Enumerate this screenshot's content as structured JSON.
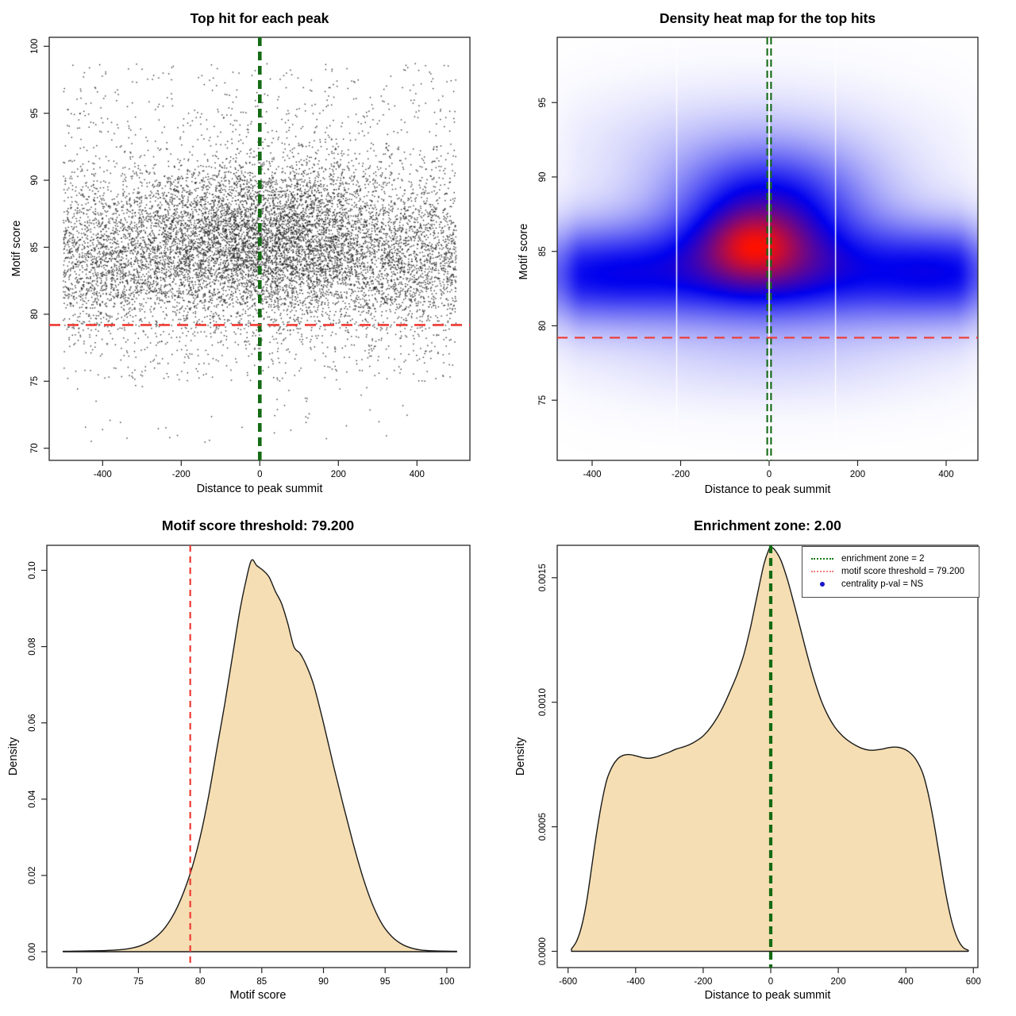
{
  "figure": {
    "background": "#ffffff",
    "box_color": "#262626",
    "text_color": "#000000"
  },
  "chart_data": [
    {
      "type": "scatter",
      "title": "Top hit for each peak",
      "xlabel": "Distance to peak summit",
      "ylabel": "Motif score",
      "xlim": [
        -535,
        535
      ],
      "ylim": [
        69.1,
        100.7
      ],
      "xticks": [
        {
          "v": -400,
          "label": "-400"
        },
        {
          "v": -200,
          "label": "-200"
        },
        {
          "v": 0,
          "label": "0"
        },
        {
          "v": 200,
          "label": "200"
        },
        {
          "v": 400,
          "label": "400"
        }
      ],
      "yticks": [
        {
          "v": 70,
          "label": "70"
        },
        {
          "v": 75,
          "label": "75"
        },
        {
          "v": 80,
          "label": "80"
        },
        {
          "v": 85,
          "label": "85"
        },
        {
          "v": 90,
          "label": "90"
        },
        {
          "v": 95,
          "label": "95"
        },
        {
          "v": 100,
          "label": "100"
        }
      ],
      "point_color": "#191919",
      "n_points": 11500,
      "seed": 42,
      "cloud_components": [
        {
          "w": 0.34,
          "x": {
            "dist": "uniform",
            "a": -500,
            "b": 500
          },
          "y": {
            "dist": "normal",
            "mu": 84.2,
            "sd": 2.4
          }
        },
        {
          "w": 0.19,
          "x": {
            "dist": "uniform",
            "a": -500,
            "b": 500
          },
          "y": {
            "dist": "normal",
            "mu": 87.6,
            "sd": 3.1
          }
        },
        {
          "w": 0.1,
          "x": {
            "dist": "uniform",
            "a": -500,
            "b": 500
          },
          "y": {
            "dist": "normal",
            "mu": 81.4,
            "sd": 1.9
          }
        },
        {
          "w": 0.22,
          "x": {
            "dist": "normal",
            "mu": 10,
            "sd": 150
          },
          "y": {
            "dist": "normal",
            "mu": 86.9,
            "sd": 2.6
          }
        },
        {
          "w": 0.09,
          "x": {
            "dist": "normal",
            "mu": -10,
            "sd": 230
          },
          "y": {
            "dist": "normal",
            "mu": 84.5,
            "sd": 2.2
          }
        },
        {
          "w": 0.025,
          "x": {
            "dist": "uniform",
            "a": -500,
            "b": 500
          },
          "y": {
            "dist": "uniform",
            "a": 75.0,
            "b": 79.3
          }
        },
        {
          "w": 0.02,
          "x": {
            "dist": "uniform",
            "a": -500,
            "b": 500
          },
          "y": {
            "dist": "uniform",
            "a": 93.5,
            "b": 98.7
          }
        },
        {
          "w": 0.003,
          "x": {
            "dist": "uniform",
            "a": -495,
            "b": 495
          },
          "y": {
            "dist": "uniform",
            "a": 70.3,
            "b": 75.2
          }
        }
      ],
      "reference_lines": [
        {
          "orient": "v",
          "at": 0,
          "color": "#146b14",
          "dash": "11 7",
          "width": 4.6
        },
        {
          "orient": "h",
          "at": 79.2,
          "color": "#ee3a33",
          "dash": "14 9",
          "width": 2.6
        }
      ]
    },
    {
      "type": "heatmap",
      "title": "Density heat map for the top hits",
      "xlabel": "Distance to peak summit",
      "ylabel": "Motif score",
      "xlim": [
        -479,
        472
      ],
      "ylim": [
        70.9,
        99.3
      ],
      "xticks": [
        {
          "v": -400,
          "label": "-400"
        },
        {
          "v": -200,
          "label": "-200"
        },
        {
          "v": 0,
          "label": "0"
        },
        {
          "v": 200,
          "label": "200"
        },
        {
          "v": 400,
          "label": "400"
        }
      ],
      "yticks": [
        {
          "v": 75,
          "label": "75"
        },
        {
          "v": 80,
          "label": "80"
        },
        {
          "v": 85,
          "label": "85"
        },
        {
          "v": 90,
          "label": "90"
        },
        {
          "v": 95,
          "label": "95"
        }
      ],
      "color_ramp": [
        "#ffffff",
        "#0000ee",
        "#ff1000"
      ],
      "density_blobs": [
        {
          "amp": 0.55,
          "x0": 0,
          "sx": 99999,
          "y0": 83.4,
          "sy": 2.4
        },
        {
          "amp": 0.62,
          "x0": -10,
          "sx": 135,
          "y0": 86.3,
          "sy": 2.9
        },
        {
          "amp": 0.42,
          "x0": -40,
          "sx": 70,
          "y0": 85.4,
          "sy": 1.5
        },
        {
          "amp": 0.25,
          "x0": 5,
          "sx": 160,
          "y0": 89.3,
          "sy": 2.2
        },
        {
          "amp": 0.2,
          "x0": 380,
          "sx": 110,
          "y0": 83.8,
          "sy": 2.0
        },
        {
          "amp": 0.18,
          "x0": -370,
          "sx": 120,
          "y0": 83.5,
          "sy": 2.0
        },
        {
          "amp": 0.1,
          "x0": -80,
          "sx": 260,
          "y0": 92.5,
          "sy": 2.5
        },
        {
          "amp": 0.08,
          "x0": 0,
          "sx": 300,
          "y0": 77.5,
          "sy": 2.0
        },
        {
          "amp": 0.12,
          "x0": 0,
          "sx": 280,
          "y0": 86.0,
          "sy": 5.5
        }
      ],
      "artifact_lines_x": [
        -209,
        150,
        0
      ],
      "reference_lines": [
        {
          "orient": "v",
          "at": 0,
          "color": "#146b14",
          "dash": "9 5",
          "width": 2.1,
          "double": true
        },
        {
          "orient": "h",
          "at": 79.2,
          "color": "#ee3a33",
          "dash": "13 9",
          "width": 2.2
        }
      ]
    },
    {
      "type": "area",
      "title": "Motif score threshold: 79.200",
      "xlabel": "Motif score",
      "ylabel": "Density",
      "xlim": [
        67.6,
        101.9
      ],
      "ylim": [
        -0.004,
        0.1066
      ],
      "xticks": [
        {
          "v": 70,
          "label": "70"
        },
        {
          "v": 75,
          "label": "75"
        },
        {
          "v": 80,
          "label": "80"
        },
        {
          "v": 85,
          "label": "85"
        },
        {
          "v": 90,
          "label": "90"
        },
        {
          "v": 95,
          "label": "95"
        },
        {
          "v": 100,
          "label": "100"
        }
      ],
      "yticks": [
        {
          "v": 0.0,
          "label": "0.00"
        },
        {
          "v": 0.02,
          "label": "0.02"
        },
        {
          "v": 0.04,
          "label": "0.04"
        },
        {
          "v": 0.06,
          "label": "0.06"
        },
        {
          "v": 0.08,
          "label": "0.08"
        },
        {
          "v": 0.1,
          "label": "0.10"
        }
      ],
      "fill": "#f5deb3",
      "stroke": "#1a1a1a",
      "points": [
        [
          68.9,
          0.0001
        ],
        [
          71,
          0.0002
        ],
        [
          73,
          0.0004
        ],
        [
          74.2,
          0.0008
        ],
        [
          75.2,
          0.0016
        ],
        [
          76.2,
          0.0033
        ],
        [
          77.2,
          0.0065
        ],
        [
          78.2,
          0.012
        ],
        [
          79.2,
          0.0205
        ],
        [
          80,
          0.03
        ],
        [
          80.7,
          0.041
        ],
        [
          81.4,
          0.054
        ],
        [
          82,
          0.065
        ],
        [
          82.6,
          0.077
        ],
        [
          83.2,
          0.089
        ],
        [
          83.7,
          0.097
        ],
        [
          84.16,
          0.1026
        ],
        [
          84.6,
          0.1012
        ],
        [
          85.1,
          0.1
        ],
        [
          85.6,
          0.0982
        ],
        [
          86.1,
          0.0945
        ],
        [
          86.6,
          0.0913
        ],
        [
          87.1,
          0.0862
        ],
        [
          87.6,
          0.08
        ],
        [
          88.1,
          0.0782
        ],
        [
          88.6,
          0.0752
        ],
        [
          89.2,
          0.07
        ],
        [
          90,
          0.06
        ],
        [
          90.8,
          0.049
        ],
        [
          91.6,
          0.0385
        ],
        [
          92.4,
          0.0285
        ],
        [
          93.2,
          0.0195
        ],
        [
          94,
          0.0122
        ],
        [
          94.8,
          0.007
        ],
        [
          95.6,
          0.0038
        ],
        [
          96.4,
          0.0019
        ],
        [
          97.2,
          0.0009
        ],
        [
          98,
          0.0004
        ],
        [
          99,
          0.0002
        ],
        [
          100.8,
          0.0001
        ]
      ],
      "reference_lines": [
        {
          "orient": "v",
          "at": 79.2,
          "color": "#ee3a33",
          "dash": "8 6",
          "width": 2.2
        }
      ]
    },
    {
      "type": "area",
      "title": "Enrichment zone: 2.00",
      "xlabel": "Distance to peak summit",
      "ylabel": "Density",
      "xlim": [
        -632,
        613
      ],
      "ylim": [
        -6.5e-05,
        0.0017
      ],
      "xticks": [
        {
          "v": -600,
          "label": "-600"
        },
        {
          "v": -400,
          "label": "-400"
        },
        {
          "v": -200,
          "label": "-200"
        },
        {
          "v": 0,
          "label": "0"
        },
        {
          "v": 200,
          "label": "200"
        },
        {
          "v": 400,
          "label": "400"
        },
        {
          "v": 600,
          "label": "600"
        }
      ],
      "yticks": [
        {
          "v": 0.0,
          "label": "0.0000"
        },
        {
          "v": 0.0005,
          "label": "0.0005"
        },
        {
          "v": 0.001,
          "label": "0.0010"
        },
        {
          "v": 0.0015,
          "label": "0.0015"
        }
      ],
      "fill": "#f5deb3",
      "stroke": "#1a1a1a",
      "points": [
        [
          -590,
          1e-05
        ],
        [
          -575,
          4e-05
        ],
        [
          -560,
          0.0001
        ],
        [
          -545,
          0.0002
        ],
        [
          -530,
          0.00034
        ],
        [
          -515,
          0.00048
        ],
        [
          -500,
          0.0006
        ],
        [
          -485,
          0.00069
        ],
        [
          -470,
          0.00074
        ],
        [
          -455,
          0.00077
        ],
        [
          -440,
          0.000785
        ],
        [
          -420,
          0.00079
        ],
        [
          -400,
          0.000785
        ],
        [
          -380,
          0.000778
        ],
        [
          -360,
          0.000775
        ],
        [
          -340,
          0.00078
        ],
        [
          -320,
          0.00079
        ],
        [
          -300,
          0.0008
        ],
        [
          -280,
          0.000812
        ],
        [
          -260,
          0.00082
        ],
        [
          -240,
          0.00083
        ],
        [
          -220,
          0.000845
        ],
        [
          -200,
          0.000865
        ],
        [
          -180,
          0.000895
        ],
        [
          -160,
          0.000935
        ],
        [
          -140,
          0.000985
        ],
        [
          -120,
          0.001045
        ],
        [
          -100,
          0.00111
        ],
        [
          -80,
          0.00119
        ],
        [
          -60,
          0.0013
        ],
        [
          -40,
          0.00143
        ],
        [
          -20,
          0.001555
        ],
        [
          -5,
          0.001615
        ],
        [
          0,
          0.00162
        ],
        [
          10,
          0.001615
        ],
        [
          30,
          0.00157
        ],
        [
          50,
          0.00149
        ],
        [
          70,
          0.00139
        ],
        [
          90,
          0.001285
        ],
        [
          110,
          0.00118
        ],
        [
          130,
          0.001085
        ],
        [
          150,
          0.001005
        ],
        [
          170,
          0.000945
        ],
        [
          190,
          0.0009
        ],
        [
          210,
          0.000868
        ],
        [
          230,
          0.000845
        ],
        [
          250,
          0.000828
        ],
        [
          270,
          0.000815
        ],
        [
          290,
          0.000808
        ],
        [
          310,
          0.000808
        ],
        [
          330,
          0.000812
        ],
        [
          350,
          0.000818
        ],
        [
          370,
          0.00082
        ],
        [
          390,
          0.000815
        ],
        [
          410,
          0.0008
        ],
        [
          430,
          0.00077
        ],
        [
          450,
          0.000715
        ],
        [
          465,
          0.00064
        ],
        [
          480,
          0.00054
        ],
        [
          495,
          0.00042
        ],
        [
          510,
          0.000295
        ],
        [
          525,
          0.000185
        ],
        [
          540,
          0.0001
        ],
        [
          555,
          4.5e-05
        ],
        [
          570,
          1.5e-05
        ],
        [
          585,
          4e-06
        ]
      ],
      "reference_lines": [
        {
          "orient": "v",
          "at": 0,
          "color": "#146b14",
          "dash": "10 6",
          "width": 4.2
        }
      ],
      "legend": {
        "entries": [
          {
            "label": "enrichment zone = 2",
            "sample": "dotted-line",
            "color": "#157a15"
          },
          {
            "label": "motif score threshold = 79.200",
            "sample": "dotted-line",
            "color": "#f08080"
          },
          {
            "label": "centrality p-val = NS",
            "sample": "dot",
            "color": "#1515cd"
          }
        ]
      }
    }
  ]
}
